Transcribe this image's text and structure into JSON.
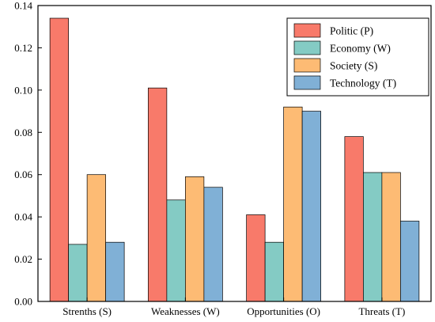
{
  "chart_data": {
    "type": "bar",
    "categories": [
      "Strenths (S)",
      "Weaknesses (W)",
      "Opportunities (O)",
      "Threats (T)"
    ],
    "series": [
      {
        "name": "Politic (P)",
        "color": "#f87a6a",
        "values": [
          0.134,
          0.101,
          0.041,
          0.078
        ]
      },
      {
        "name": "Economy (W)",
        "color": "#84cbc4",
        "values": [
          0.027,
          0.048,
          0.028,
          0.061
        ]
      },
      {
        "name": "Society (S)",
        "color": "#fdbb74",
        "values": [
          0.06,
          0.059,
          0.092,
          0.061
        ]
      },
      {
        "name": "Technology (T)",
        "color": "#80b0d6",
        "values": [
          0.028,
          0.054,
          0.09,
          0.038
        ]
      }
    ],
    "yticks": [
      "0.00",
      "0.02",
      "0.04",
      "0.06",
      "0.08",
      "0.10",
      "0.12",
      "0.14"
    ],
    "ylim": [
      0,
      0.14
    ],
    "title": "",
    "xlabel": "",
    "ylabel": "",
    "legend_position": "top-right",
    "grid": false
  }
}
